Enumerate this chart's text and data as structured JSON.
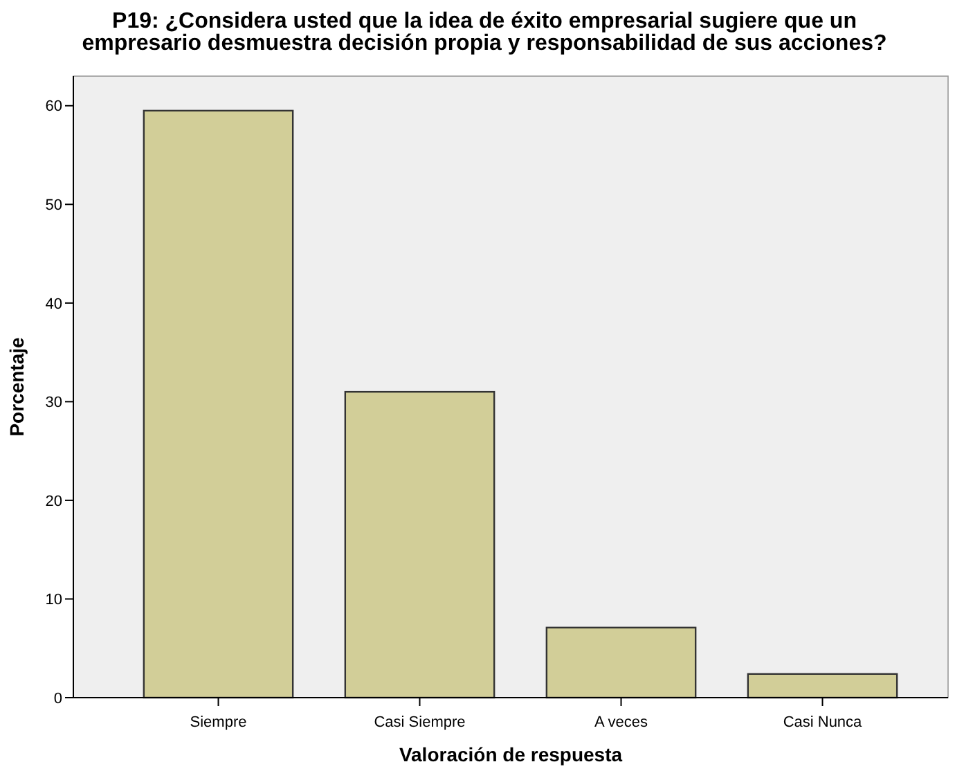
{
  "chart_data": {
    "type": "bar",
    "title": "P19: ¿Considera usted que la idea de éxito empresarial sugiere que un\nempresario desmuestra decisión propia y responsabilidad de sus acciones?",
    "xlabel": "Valoración de respuesta",
    "ylabel": "Porcentaje",
    "categories": [
      "Siempre",
      "Casi Siempre",
      "A veces",
      "Casi Nunca"
    ],
    "values": [
      59.5,
      31.0,
      7.1,
      2.4
    ],
    "color": "#d2ce98",
    "ylim": [
      0,
      63
    ],
    "yticks": [
      0,
      10,
      20,
      30,
      40,
      50,
      60
    ],
    "grid": false
  }
}
